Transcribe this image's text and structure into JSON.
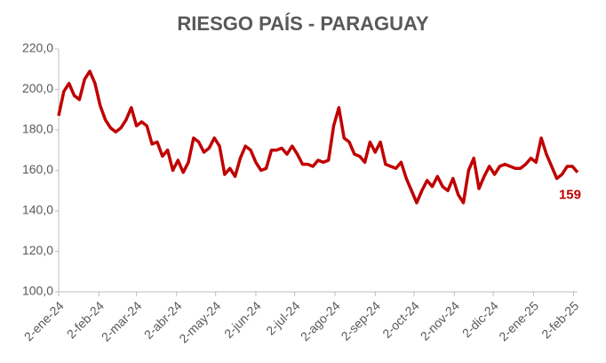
{
  "chart_data": {
    "type": "line",
    "title": "RIESGO PAÍS - PARAGUAY",
    "x": [
      "2024-01-02",
      "2024-01-06",
      "2024-01-10",
      "2024-01-14",
      "2024-01-18",
      "2024-01-22",
      "2024-01-26",
      "2024-01-30",
      "2024-02-03",
      "2024-02-07",
      "2024-02-11",
      "2024-02-15",
      "2024-02-19",
      "2024-02-23",
      "2024-02-27",
      "2024-03-02",
      "2024-03-06",
      "2024-03-10",
      "2024-03-14",
      "2024-03-18",
      "2024-03-22",
      "2024-03-26",
      "2024-03-30",
      "2024-04-03",
      "2024-04-07",
      "2024-04-11",
      "2024-04-15",
      "2024-04-19",
      "2024-04-23",
      "2024-04-27",
      "2024-05-01",
      "2024-05-05",
      "2024-05-09",
      "2024-05-13",
      "2024-05-17",
      "2024-05-21",
      "2024-05-25",
      "2024-05-29",
      "2024-06-02",
      "2024-06-06",
      "2024-06-10",
      "2024-06-14",
      "2024-06-18",
      "2024-06-22",
      "2024-06-26",
      "2024-06-30",
      "2024-07-04",
      "2024-07-08",
      "2024-07-12",
      "2024-07-16",
      "2024-07-20",
      "2024-07-24",
      "2024-07-28",
      "2024-08-01",
      "2024-08-05",
      "2024-08-09",
      "2024-08-13",
      "2024-08-17",
      "2024-08-21",
      "2024-08-25",
      "2024-08-29",
      "2024-09-02",
      "2024-09-06",
      "2024-09-10",
      "2024-09-14",
      "2024-09-18",
      "2024-09-22",
      "2024-09-26",
      "2024-09-30",
      "2024-10-04",
      "2024-10-08",
      "2024-10-12",
      "2024-10-16",
      "2024-10-20",
      "2024-10-24",
      "2024-10-28",
      "2024-11-01",
      "2024-11-05",
      "2024-11-09",
      "2024-11-13",
      "2024-11-17",
      "2024-11-21",
      "2024-11-25",
      "2024-11-29",
      "2024-12-03",
      "2024-12-07",
      "2024-12-11",
      "2024-12-15",
      "2024-12-19",
      "2024-12-23",
      "2024-12-27",
      "2024-12-31",
      "2025-01-04",
      "2025-01-08",
      "2025-01-12",
      "2025-01-16",
      "2025-01-20",
      "2025-01-24",
      "2025-01-28",
      "2025-02-01",
      "2025-02-05"
    ],
    "series": [
      {
        "color": "#c00000",
        "values": [
          187,
          199,
          203,
          197,
          195,
          205,
          209,
          203,
          192,
          185,
          181,
          179,
          181,
          185,
          191,
          182,
          184,
          182,
          173,
          174,
          167,
          170,
          160,
          165,
          159,
          164,
          176,
          174,
          169,
          171,
          176,
          172,
          158,
          161,
          157,
          166,
          172,
          170,
          164,
          160,
          161,
          170,
          170,
          171,
          168,
          172,
          168,
          163,
          163,
          162,
          165,
          164,
          165,
          182,
          191,
          176,
          174,
          168,
          167,
          164,
          174,
          169,
          174,
          163,
          162,
          161,
          164,
          156,
          150,
          144,
          150,
          155,
          152,
          157,
          152,
          150,
          156,
          148,
          144,
          160,
          166,
          151,
          157,
          162,
          158,
          162,
          163,
          162,
          161,
          161,
          163,
          166,
          164,
          176,
          168,
          162,
          156,
          158,
          162,
          162,
          159
        ]
      }
    ],
    "xlim": [
      "2024-01-02",
      "2025-02-05"
    ],
    "xticks": [
      {
        "value": "2024-01-02",
        "label": "2-ene-24"
      },
      {
        "value": "2024-02-02",
        "label": "2-feb-24"
      },
      {
        "value": "2024-03-02",
        "label": "2-mar-24"
      },
      {
        "value": "2024-04-02",
        "label": "2-abr-24"
      },
      {
        "value": "2024-05-02",
        "label": "2-may-24"
      },
      {
        "value": "2024-06-02",
        "label": "2-jun-24"
      },
      {
        "value": "2024-07-02",
        "label": "2-jul-24"
      },
      {
        "value": "2024-08-02",
        "label": "2-ago-24"
      },
      {
        "value": "2024-09-02",
        "label": "2-sep-24"
      },
      {
        "value": "2024-10-02",
        "label": "2-oct-24"
      },
      {
        "value": "2024-11-02",
        "label": "2-nov-24"
      },
      {
        "value": "2024-12-02",
        "label": "2-dic-24"
      },
      {
        "value": "2025-01-02",
        "label": "2-ene-25"
      },
      {
        "value": "2025-02-02",
        "label": "2-feb-25"
      }
    ],
    "ylim": [
      100,
      220
    ],
    "yticks": [
      {
        "value": 100,
        "label": "100,0"
      },
      {
        "value": 120,
        "label": "120,0"
      },
      {
        "value": 140,
        "label": "140,0"
      },
      {
        "value": 160,
        "label": "160,0"
      },
      {
        "value": 180,
        "label": "180,0"
      },
      {
        "value": 200,
        "label": "200,0"
      },
      {
        "value": 220,
        "label": "220,0"
      }
    ],
    "grid": false
  }
}
